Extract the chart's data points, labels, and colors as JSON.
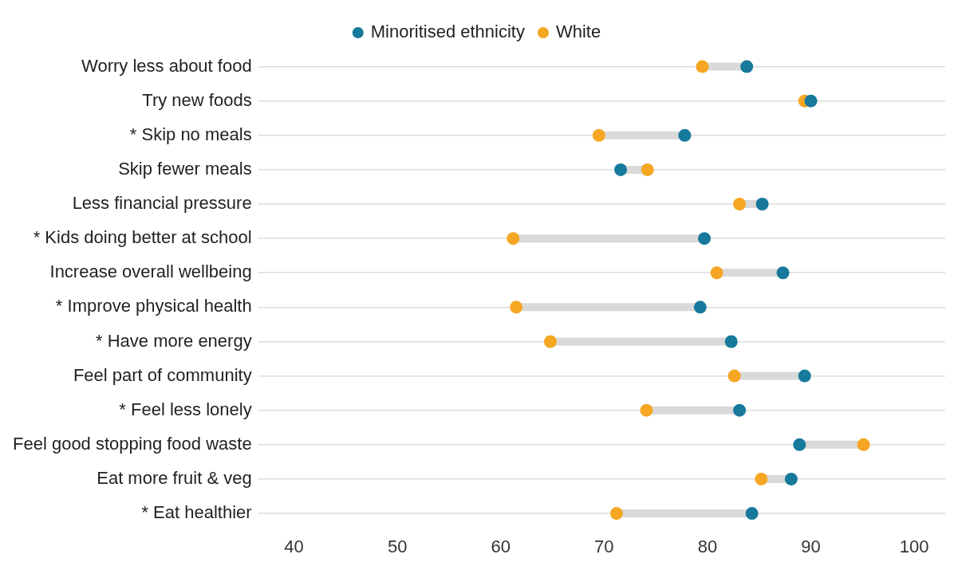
{
  "chart_data": {
    "type": "scatter",
    "orientation": "horizontal",
    "categories": [
      "Worry less about food",
      "Try new foods",
      "* Skip no meals",
      "Skip fewer meals",
      "Less financial pressure",
      "* Kids doing better at school",
      "Increase overall wellbeing",
      "* Improve physical health",
      "* Have more energy",
      "Feel part of community",
      "* Feel less lonely",
      "Feel good stopping food waste",
      "Eat more fruit & veg",
      "* Eat healthier"
    ],
    "series": [
      {
        "name": "Minoritised ethnicity",
        "color": "#17799b",
        "values": [
          83.8,
          90,
          77.8,
          71.6,
          85.3,
          79.7,
          87.3,
          79.3,
          82.3,
          89.4,
          83.1,
          88.9,
          88.1,
          84.3
        ]
      },
      {
        "name": "White",
        "color": "#f5a623",
        "values": [
          79.5,
          89.4,
          69.5,
          74.2,
          83.1,
          61.2,
          80.9,
          61.5,
          64.8,
          82.6,
          74.1,
          95.1,
          85.2,
          71.2
        ]
      }
    ],
    "xlim": [
      37,
      103
    ],
    "xticks": [
      40,
      50,
      60,
      70,
      80,
      90,
      100
    ],
    "grid": "y",
    "legend": "top",
    "marker": "circle"
  }
}
